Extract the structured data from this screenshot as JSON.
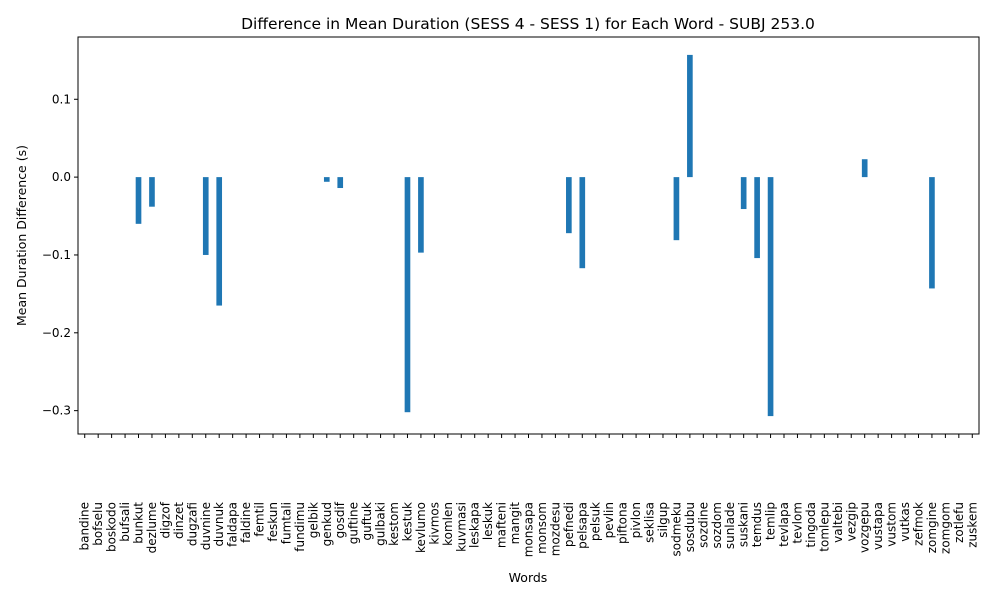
{
  "chart_data": {
    "type": "bar",
    "title": "Difference in Mean Duration (SESS 4 - SESS 1) for Each Word - SUBJ 253.0",
    "xlabel": "Words",
    "ylabel": "Mean Duration Difference (s)",
    "ylim": [
      -0.33,
      0.18
    ],
    "yticks": [
      -0.3,
      -0.2,
      -0.1,
      0.0,
      0.1
    ],
    "ytick_labels": [
      "−0.3",
      "−0.2",
      "−0.1",
      "0.0",
      "0.1"
    ],
    "grid": false,
    "bar_color": "#1f77b4",
    "categories": [
      "bandine",
      "bofselu",
      "boskodo",
      "bufsali",
      "bunkut",
      "dezlume",
      "digzof",
      "dinzet",
      "dugzafi",
      "duvnine",
      "duvnuk",
      "faldapa",
      "faldine",
      "femtil",
      "feskun",
      "fumtali",
      "fundimu",
      "gelbik",
      "genkud",
      "gosdif",
      "guftine",
      "guftuk",
      "gulbaki",
      "kestom",
      "kestuk",
      "kevlumo",
      "kivmos",
      "komlen",
      "kuvmasi",
      "leskapa",
      "leskuk",
      "mafteni",
      "mangit",
      "monsapa",
      "monsom",
      "mozdesu",
      "pefnedi",
      "pelsapa",
      "pelsuk",
      "pevlin",
      "piftona",
      "pivlon",
      "seklisa",
      "silgup",
      "sodmeku",
      "sosdubu",
      "sozdine",
      "sozdom",
      "sunlade",
      "suskani",
      "temdus",
      "temlip",
      "tevlapa",
      "tevlom",
      "tingoda",
      "tomlepu",
      "valtebi",
      "vezgip",
      "vozgepu",
      "vustapa",
      "vustom",
      "vutkas",
      "zefmok",
      "zomgine",
      "zomgom",
      "zotlefu",
      "zuskem"
    ],
    "values": [
      0,
      0,
      0,
      0,
      -0.06,
      -0.038,
      0,
      0,
      0,
      -0.1,
      -0.165,
      0,
      0,
      0,
      0,
      0,
      0,
      0,
      -0.006,
      -0.014,
      0,
      0,
      0,
      0,
      -0.302,
      -0.097,
      0,
      0,
      0,
      0,
      0,
      0,
      0,
      0,
      0,
      0,
      -0.072,
      -0.117,
      0,
      0,
      0,
      0,
      0,
      0,
      -0.081,
      0.157,
      0,
      0,
      0,
      -0.041,
      -0.104,
      -0.307,
      0,
      0,
      0,
      0,
      0,
      0,
      0.023,
      0,
      0,
      0,
      0,
      -0.143,
      0,
      0,
      0
    ]
  }
}
